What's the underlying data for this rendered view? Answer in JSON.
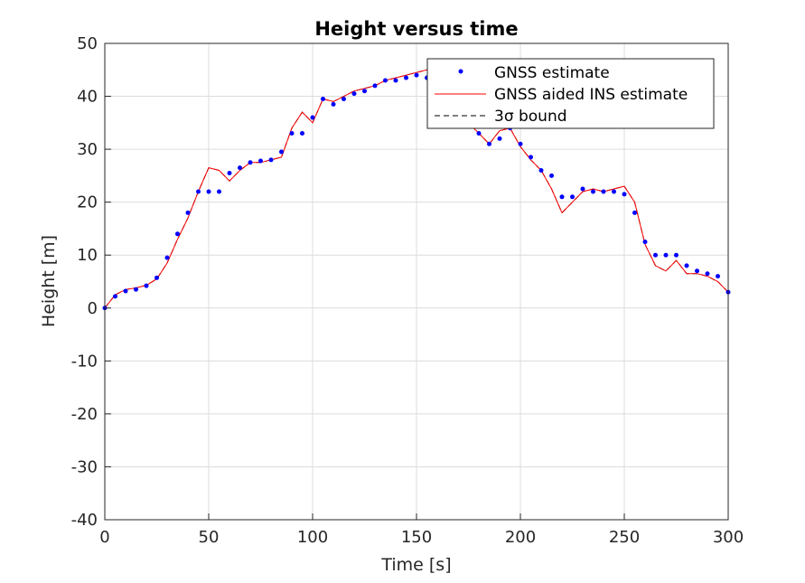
{
  "chart_data": {
    "type": "line",
    "title": "Height versus time",
    "xlabel": "Time [s]",
    "ylabel": "Height [m]",
    "xlim": [
      0,
      300
    ],
    "ylim": [
      -40,
      50
    ],
    "x_ticks": [
      0,
      50,
      100,
      150,
      200,
      250,
      300
    ],
    "y_ticks": [
      -40,
      -30,
      -20,
      -10,
      0,
      10,
      20,
      30,
      40,
      50
    ],
    "grid": true,
    "legend_position": "top-right",
    "series": [
      {
        "name": "GNSS estimate",
        "style": "dots",
        "color": "#0000ff",
        "x": [
          0,
          5,
          10,
          15,
          20,
          25,
          30,
          35,
          40,
          45,
          50,
          55,
          60,
          65,
          70,
          75,
          80,
          85,
          90,
          95,
          100,
          105,
          110,
          115,
          120,
          125,
          130,
          135,
          140,
          145,
          150,
          155,
          160,
          165,
          170,
          175,
          180,
          185,
          190,
          195,
          200,
          205,
          210,
          215,
          220,
          225,
          230,
          235,
          240,
          245,
          250,
          255,
          260,
          265,
          270,
          275,
          280,
          285,
          290,
          295,
          300
        ],
        "y": [
          0,
          2.2,
          3.2,
          3.5,
          4.2,
          5.7,
          9.5,
          14,
          18,
          22,
          22,
          22,
          25.5,
          26.5,
          27.5,
          27.8,
          28,
          29.5,
          33,
          33,
          36,
          39.5,
          38.5,
          39.5,
          40.5,
          41,
          42,
          43,
          43,
          43.5,
          44,
          43.5,
          41.5,
          39,
          36,
          34.5,
          33,
          31,
          32,
          34,
          31,
          28.5,
          26,
          25,
          21,
          21,
          22.5,
          22,
          22,
          22,
          21.5,
          18,
          12.5,
          10,
          10,
          10,
          8,
          7,
          6.5,
          6,
          3
        ]
      },
      {
        "name": "GNSS aided INS estimate",
        "style": "line",
        "color": "#ff0000",
        "x": [
          0,
          5,
          10,
          15,
          20,
          25,
          30,
          35,
          40,
          45,
          50,
          55,
          60,
          65,
          70,
          75,
          80,
          85,
          90,
          95,
          100,
          105,
          110,
          115,
          120,
          125,
          130,
          135,
          140,
          145,
          150,
          155,
          160,
          165,
          170,
          175,
          180,
          185,
          190,
          195,
          200,
          205,
          210,
          215,
          220,
          225,
          230,
          235,
          240,
          245,
          250,
          255,
          260,
          265,
          270,
          275,
          280,
          285,
          290,
          295,
          300
        ],
        "y": [
          0,
          2.5,
          3.5,
          3.8,
          4.3,
          5.5,
          8.5,
          13,
          17,
          22,
          26.5,
          26,
          24,
          26,
          27.5,
          27.5,
          28,
          28.5,
          34,
          37,
          35,
          39.5,
          39,
          40,
          41,
          41.5,
          42,
          43,
          43.5,
          44,
          44.5,
          45,
          43,
          40,
          37,
          35,
          33,
          31,
          33.5,
          34,
          30.5,
          28,
          26,
          22.5,
          18,
          20,
          22,
          22.5,
          22,
          22.5,
          23,
          20,
          12,
          8,
          7,
          9,
          6.5,
          6.5,
          6,
          5,
          3
        ]
      },
      {
        "name": "3σ bound",
        "style": "dashed",
        "color": "#000000",
        "x": [
          0,
          5,
          10,
          15,
          20,
          25,
          30,
          35,
          40,
          45,
          50,
          55,
          60,
          65,
          70,
          75,
          80,
          85,
          90,
          95,
          100,
          105,
          110,
          115,
          120,
          125,
          130,
          135,
          140,
          145,
          150,
          155,
          160,
          165,
          170,
          175,
          180,
          185,
          190,
          195,
          200,
          205,
          210,
          215,
          220,
          225,
          230,
          235,
          240,
          245,
          250,
          255,
          260,
          265,
          270,
          275,
          280,
          285,
          290,
          295,
          300
        ],
        "y": [
          0,
          2.5,
          3.5,
          3.8,
          4.3,
          5.5,
          8.5,
          13,
          17,
          22,
          26.5,
          26,
          24,
          26,
          27.5,
          27.5,
          28,
          28.5,
          34,
          37,
          35,
          39.5,
          39,
          40,
          41,
          41.5,
          42,
          43,
          43.5,
          44,
          44.5,
          45,
          43,
          40,
          37,
          35,
          33,
          31,
          33.5,
          34,
          30.5,
          28,
          26,
          22.5,
          18,
          20,
          22,
          22.5,
          22,
          22.5,
          23,
          20,
          12,
          8,
          7,
          9,
          6.5,
          6.5,
          6,
          5,
          3
        ]
      }
    ]
  }
}
